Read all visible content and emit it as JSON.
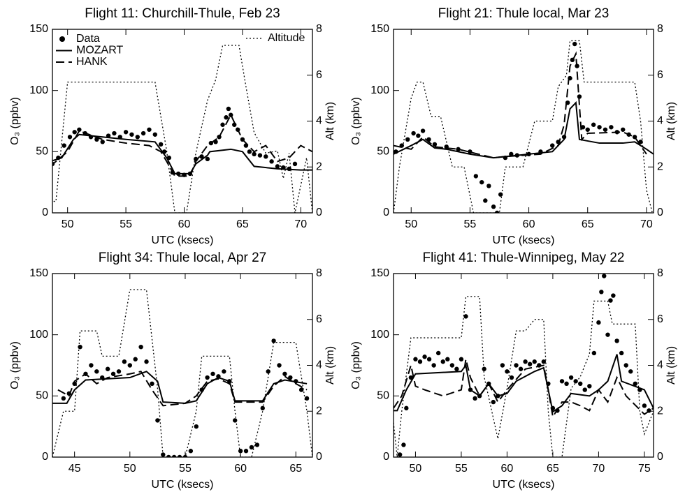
{
  "chart_data": [
    {
      "type": "line",
      "title": "Flight 11: Churchill-Thule, Feb 23",
      "xlabel": "UTC (ksecs)",
      "ylabel": "O₃ (ppbv)",
      "y2label": "Alt (km)",
      "legend": true,
      "xlim": [
        48.7,
        71
      ],
      "xticks": [
        50,
        55,
        60,
        65,
        70
      ],
      "ylim": [
        0,
        150
      ],
      "yticks": [
        0,
        50,
        100,
        150
      ],
      "y2lim": [
        0,
        8
      ],
      "y2ticks": [
        0,
        2,
        4,
        6,
        8
      ],
      "series": [
        {
          "name": "Data",
          "color": "#000000",
          "style": "markers",
          "x": [
            48.7,
            49.2,
            49.7,
            50.2,
            50.6,
            51,
            51.5,
            52,
            52.5,
            53,
            53.5,
            54,
            54.5,
            55,
            55.5,
            56,
            56.5,
            57,
            57.5,
            58,
            58.3,
            58.7,
            59,
            59.5,
            60,
            60.5,
            61,
            61.5,
            62,
            62.3,
            62.7,
            63,
            63.3,
            63.6,
            63.8,
            64,
            64.3,
            64.6,
            65,
            65.3,
            65.6,
            66,
            66.5,
            67,
            67.5,
            68,
            68.5,
            69,
            69.5
          ],
          "values": [
            40,
            45,
            55,
            62,
            66,
            68,
            65,
            62,
            60,
            58,
            63,
            65,
            62,
            66,
            64,
            62,
            65,
            68,
            64,
            56,
            50,
            45,
            33,
            32,
            31,
            32,
            44,
            46,
            44,
            57,
            58,
            62,
            72,
            78,
            85,
            80,
            72,
            68,
            60,
            55,
            50,
            48,
            47,
            46,
            42,
            38,
            37,
            36,
            40
          ]
        },
        {
          "name": "MOZART",
          "color": "#000000",
          "style": "solid",
          "x": [
            48.5,
            49.5,
            50.5,
            51,
            53,
            55,
            57.5,
            58.5,
            59.2,
            60.5,
            61,
            62,
            62.2,
            64,
            65,
            66,
            68,
            70,
            71
          ],
          "values": [
            42,
            45,
            60,
            64,
            62,
            60,
            58,
            45,
            32,
            32,
            40,
            47,
            50,
            52,
            50,
            38,
            36,
            35,
            35
          ]
        },
        {
          "name": "HANK",
          "color": "#000000",
          "style": "dash",
          "x": [
            48.5,
            50,
            51,
            53,
            55,
            57,
            58,
            58.5,
            59.2,
            60.5,
            61,
            62,
            63,
            64,
            65,
            66,
            67,
            68,
            69,
            70,
            71
          ],
          "values": [
            38,
            50,
            67,
            60,
            57,
            55,
            50,
            42,
            30,
            30,
            42,
            55,
            62,
            80,
            60,
            50,
            55,
            42,
            45,
            55,
            50
          ]
        },
        {
          "name": "Altitude",
          "color": "#000000",
          "style": "dot",
          "axis": "y2",
          "x": [
            48.5,
            49,
            50,
            57.5,
            58.5,
            59.2,
            60.2,
            61,
            62,
            62.7,
            63.3,
            64.7,
            65.3,
            66,
            67,
            68,
            68.5,
            69,
            69.5,
            70.5,
            71
          ],
          "values": [
            0.5,
            0.5,
            5.7,
            5.7,
            2.7,
            0,
            0,
            2.6,
            4.9,
            5.8,
            7.3,
            7.3,
            5.5,
            3.5,
            2.6,
            2.7,
            1.5,
            2.6,
            0,
            2.4,
            0
          ]
        }
      ]
    },
    {
      "type": "line",
      "title": "Flight 21: Thule local, Mar 23",
      "xlabel": "UTC (ksecs)",
      "ylabel": "O₃ (ppbv)",
      "y2label": "Alt (km)",
      "xlim": [
        48.5,
        70.6
      ],
      "xticks": [
        50,
        55,
        60,
        65,
        70
      ],
      "ylim": [
        0,
        150
      ],
      "yticks": [
        0,
        50,
        100,
        150
      ],
      "y2lim": [
        0,
        8
      ],
      "y2ticks": [
        0,
        2,
        4,
        6,
        8
      ],
      "series": [
        {
          "color": "#000000",
          "style": "markers",
          "x": [
            48.7,
            49.2,
            49.7,
            50.2,
            50.6,
            51,
            51.5,
            52,
            53,
            54,
            55,
            55.5,
            56,
            56.3,
            56.6,
            57,
            57.3,
            57.6,
            58,
            58.5,
            59,
            60,
            61,
            62,
            62.5,
            63,
            63.3,
            63.5,
            63.7,
            63.9,
            64.1,
            64.3,
            64.6,
            65,
            65.5,
            66,
            66.5,
            67,
            67.5,
            68,
            68.5,
            69,
            69.5
          ],
          "values": [
            50,
            55,
            60,
            65,
            63,
            67,
            60,
            56,
            54,
            52,
            50,
            30,
            25,
            10,
            22,
            5,
            0,
            15,
            45,
            48,
            47,
            48,
            50,
            55,
            58,
            62,
            90,
            110,
            125,
            138,
            120,
            95,
            70,
            68,
            72,
            70,
            68,
            70,
            66,
            68,
            64,
            62,
            58
          ]
        },
        {
          "color": "#000000",
          "style": "solid",
          "x": [
            48.5,
            50,
            51,
            52,
            53,
            55,
            57,
            58,
            60,
            62,
            63,
            63.5,
            64,
            64.3,
            66,
            68,
            69,
            70,
            70.6
          ],
          "values": [
            48,
            55,
            60,
            53,
            52,
            48,
            45,
            46,
            48,
            50,
            60,
            85,
            90,
            60,
            57,
            57,
            58,
            52,
            48
          ]
        },
        {
          "color": "#000000",
          "style": "dash",
          "x": [
            48.5,
            50,
            51,
            52,
            54,
            57,
            58,
            61,
            62.5,
            63,
            63.5,
            64,
            64.5,
            65,
            68,
            69,
            70
          ],
          "values": [
            55,
            52,
            62,
            54,
            52,
            45,
            46,
            48,
            55,
            72,
            120,
            130,
            60,
            65,
            66,
            62,
            48
          ]
        },
        {
          "color": "#000000",
          "style": "dot",
          "axis": "y2",
          "x": [
            48.5,
            49,
            50,
            50.5,
            51,
            51.7,
            52.5,
            53.5,
            54.5,
            55.3,
            57.5,
            58,
            59.5,
            60.5,
            62,
            62.5,
            63.2,
            63.5,
            64.3,
            64.7,
            69,
            69.5,
            70,
            70.5
          ],
          "values": [
            0,
            2,
            5,
            5.7,
            5.7,
            4.2,
            4.2,
            2,
            2,
            0,
            0,
            2,
            2,
            4,
            4,
            5.5,
            6,
            7.5,
            7.5,
            5.7,
            5.7,
            4,
            1,
            0
          ]
        }
      ]
    },
    {
      "type": "line",
      "title": "Flight 34: Thule local, Apr 27",
      "xlabel": "UTC (ksecs)",
      "ylabel": "O₃ (ppbv)",
      "y2label": "Alt (km)",
      "xlim": [
        43,
        66.5
      ],
      "xticks": [
        45,
        50,
        55,
        60,
        65
      ],
      "ylim": [
        0,
        150
      ],
      "yticks": [
        0,
        50,
        100,
        150
      ],
      "y2lim": [
        0,
        8
      ],
      "y2ticks": [
        0,
        2,
        4,
        6,
        8
      ],
      "series": [
        {
          "color": "#000000",
          "style": "markers",
          "x": [
            44,
            44.5,
            45,
            45.5,
            46,
            46.5,
            47,
            47.5,
            48,
            48.5,
            49,
            49.5,
            50,
            50.5,
            51,
            51.5,
            52,
            52.5,
            53,
            53.5,
            54,
            54.5,
            55,
            55.5,
            56,
            56.5,
            57,
            57.5,
            58,
            58.5,
            59,
            59.5,
            60,
            60.5,
            61,
            61.5,
            62,
            62.5,
            63,
            63.5,
            64,
            64.5,
            65,
            65.5,
            66
          ],
          "values": [
            48,
            52,
            60,
            90,
            68,
            75,
            70,
            65,
            72,
            68,
            70,
            78,
            75,
            80,
            90,
            78,
            60,
            30,
            2,
            0,
            0,
            0,
            0,
            5,
            25,
            55,
            65,
            68,
            66,
            70,
            62,
            30,
            5,
            5,
            8,
            10,
            40,
            70,
            95,
            75,
            68,
            65,
            62,
            55,
            48
          ]
        },
        {
          "color": "#000000",
          "style": "solid",
          "x": [
            43,
            44.3,
            45,
            46,
            48,
            50,
            51.5,
            52.5,
            53,
            55,
            56,
            57,
            58,
            59,
            59.5,
            62,
            63,
            64,
            66
          ],
          "values": [
            44,
            44,
            55,
            63,
            64,
            65,
            70,
            62,
            45,
            44,
            46,
            60,
            65,
            62,
            46,
            46,
            60,
            63,
            60
          ]
        },
        {
          "color": "#000000",
          "style": "dash",
          "x": [
            43.5,
            44.5,
            45,
            46,
            47,
            48,
            50,
            51,
            52,
            53,
            55,
            56,
            57,
            58,
            59,
            59.5,
            62,
            63,
            64,
            65,
            66
          ],
          "values": [
            55,
            50,
            62,
            68,
            60,
            65,
            68,
            70,
            55,
            42,
            44,
            50,
            62,
            64,
            60,
            45,
            45,
            58,
            66,
            60,
            55
          ]
        },
        {
          "color": "#000000",
          "style": "dot",
          "axis": "y2",
          "x": [
            43,
            44,
            45,
            45.5,
            47,
            47.5,
            49,
            50,
            51.5,
            52.5,
            53,
            55,
            56,
            56.5,
            59,
            59.5,
            60,
            61,
            62,
            63,
            65,
            66,
            66.5
          ],
          "values": [
            0,
            2,
            2,
            5.5,
            5.5,
            4.4,
            4.4,
            7.3,
            7.3,
            3,
            0,
            0,
            2,
            4.4,
            4.4,
            2,
            0,
            0,
            2,
            5,
            5,
            2,
            0
          ]
        }
      ]
    },
    {
      "type": "line",
      "title": "Flight 41: Thule-Winnipeg, May 22",
      "xlabel": "UTC (ksecs)",
      "ylabel": "O₃ (ppbv)",
      "y2label": "Alt (km)",
      "xlim": [
        47.6,
        76
      ],
      "xticks": [
        50,
        55,
        60,
        65,
        70,
        75
      ],
      "ylim": [
        0,
        150
      ],
      "yticks": [
        0,
        50,
        100,
        150
      ],
      "y2lim": [
        0,
        8
      ],
      "y2ticks": [
        0,
        2,
        4,
        6,
        8
      ],
      "series": [
        {
          "color": "#000000",
          "style": "markers",
          "x": [
            48.3,
            48.7,
            49,
            49.5,
            50,
            50.5,
            51,
            51.5,
            52,
            52.5,
            53,
            53.5,
            54,
            54.5,
            55,
            55.5,
            56,
            56.5,
            57,
            57.5,
            58,
            58.5,
            59,
            59.5,
            60,
            60.5,
            61,
            61.5,
            62,
            62.5,
            63,
            63.5,
            64,
            64.5,
            65,
            65.5,
            66,
            66.5,
            67,
            67.5,
            68,
            68.5,
            69,
            69.5,
            70,
            70.3,
            70.6,
            71,
            71.3,
            71.6,
            72,
            72.5,
            73,
            73.5,
            74,
            74.5,
            75,
            75.5
          ],
          "values": [
            2,
            10,
            40,
            65,
            80,
            78,
            82,
            80,
            75,
            85,
            78,
            80,
            75,
            72,
            80,
            115,
            55,
            48,
            50,
            72,
            60,
            45,
            50,
            75,
            70,
            65,
            75,
            72,
            78,
            76,
            78,
            75,
            78,
            60,
            40,
            38,
            62,
            60,
            65,
            62,
            60,
            55,
            58,
            85,
            110,
            135,
            148,
            100,
            128,
            132,
            95,
            85,
            75,
            70,
            60,
            55,
            42,
            38
          ]
        },
        {
          "color": "#000000",
          "style": "solid",
          "x": [
            47.6,
            48,
            49,
            50,
            55,
            55.5,
            56,
            57,
            58,
            59,
            60,
            61,
            63,
            64,
            64.5,
            65,
            66,
            67,
            69,
            70,
            71,
            72,
            72.5,
            75,
            76
          ],
          "values": [
            38,
            38,
            55,
            68,
            70,
            75,
            55,
            50,
            60,
            50,
            52,
            62,
            70,
            73,
            55,
            37,
            42,
            52,
            50,
            55,
            62,
            84,
            62,
            55,
            40
          ]
        },
        {
          "color": "#000000",
          "style": "dash",
          "x": [
            47.6,
            48.5,
            49.5,
            50,
            51,
            53,
            55,
            55.5,
            56,
            57,
            58,
            59,
            60,
            62,
            64,
            64.5,
            65,
            66,
            67,
            68,
            69,
            70,
            71,
            72,
            73,
            75,
            76
          ],
          "values": [
            40,
            50,
            75,
            58,
            55,
            50,
            55,
            80,
            65,
            50,
            60,
            45,
            55,
            72,
            75,
            55,
            33,
            45,
            45,
            42,
            38,
            55,
            45,
            65,
            50,
            35,
            40
          ]
        },
        {
          "color": "#000000",
          "style": "dot",
          "axis": "y2",
          "x": [
            47.6,
            48,
            48.5,
            49.5,
            55,
            55.5,
            57,
            57.5,
            59,
            60,
            61,
            62,
            63,
            64,
            64.5,
            65,
            66,
            67,
            68,
            69,
            69.5,
            71,
            71.5,
            74,
            74.5,
            75,
            76
          ],
          "values": [
            1.5,
            0,
            2,
            5.2,
            5.2,
            7,
            7,
            3.5,
            0.8,
            3,
            5.5,
            5.5,
            6,
            6,
            2,
            0,
            0,
            3,
            3.5,
            4.5,
            6.8,
            6.8,
            5.8,
            5.8,
            2,
            1,
            2
          ]
        }
      ]
    }
  ]
}
